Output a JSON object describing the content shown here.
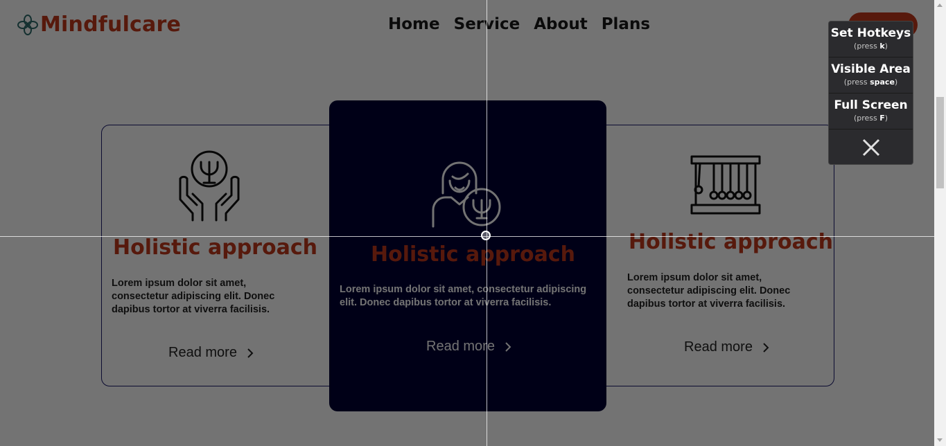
{
  "brand": {
    "name": "Mindfulcare"
  },
  "nav": {
    "items": [
      "Home",
      "Service",
      "About",
      "Plans"
    ]
  },
  "cards": [
    {
      "title": "Holistic approach",
      "description": "Lorem ipsum dolor sit amet, consectetur adipiscing elit. Donec dapibus tortor at viverra facilisis.",
      "read_more": "Read more",
      "icon": "psychology-hands-icon"
    },
    {
      "title": "Holistic approach",
      "description": "Lorem ipsum dolor sit amet, consectetur adipiscing elit. Donec dapibus tortor at viverra facilisis.",
      "read_more": "Read more",
      "icon": "psychologist-woman-icon"
    },
    {
      "title": "Holistic approach",
      "description": "Lorem ipsum dolor sit amet, consectetur adipiscing elit. Donec dapibus tortor at viverra facilisis.",
      "read_more": "Read more",
      "icon": "newtons-cradle-icon"
    }
  ],
  "capture_menu": {
    "items": [
      {
        "label": "Set Hotkeys",
        "hint_prefix": "(press ",
        "key": "k",
        "hint_suffix": ")"
      },
      {
        "label": "Visible Area",
        "hint_prefix": "(press ",
        "key": "space",
        "hint_suffix": ")"
      },
      {
        "label": "Full Screen",
        "hint_prefix": "(press ",
        "key": "F",
        "hint_suffix": ")"
      }
    ],
    "close_icon": "close-icon"
  },
  "colors": {
    "brand": "#c0391b",
    "card_dark": "#000033",
    "overlay": "rgba(0,0,0,0.55)"
  }
}
